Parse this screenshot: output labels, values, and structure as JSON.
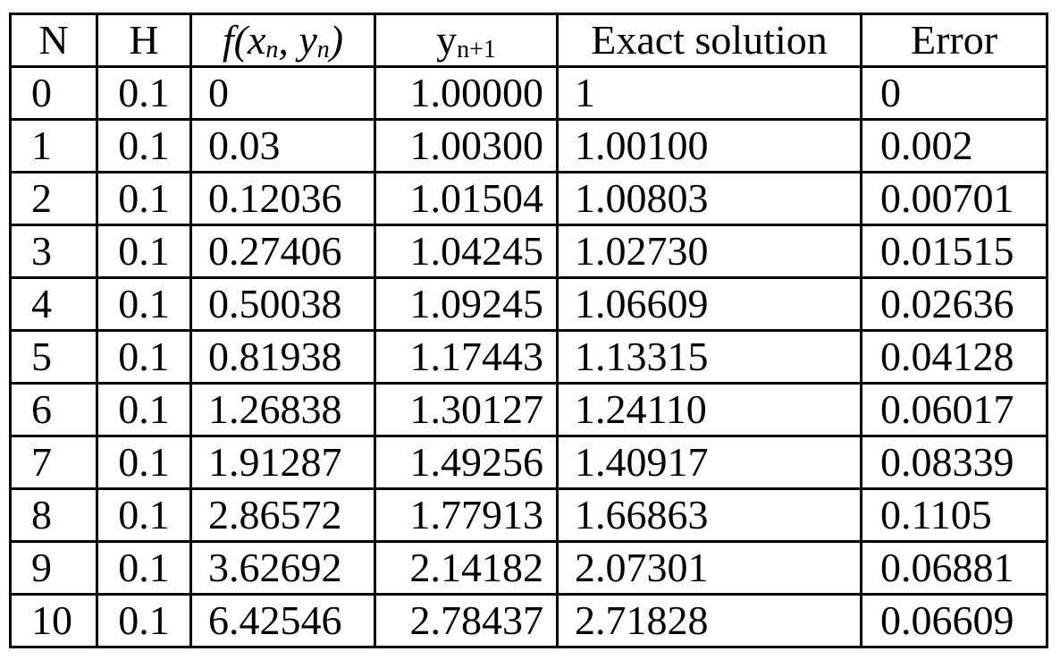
{
  "table": {
    "headers": {
      "n": "N",
      "h": "H",
      "f_main": "f(x",
      "f_sub1": "n",
      "f_mid": ", y",
      "f_sub2": "n",
      "f_end": ")",
      "y_main": "y",
      "y_sub": "n+1",
      "exact": "Exact solution",
      "error": "Error"
    },
    "rows": [
      [
        "0",
        "0.1",
        "0",
        "1.00000",
        "1",
        "0"
      ],
      [
        "1",
        "0.1",
        "0.03",
        "1.00300",
        "1.00100",
        "0.002"
      ],
      [
        "2",
        "0.1",
        "0.12036",
        "1.01504",
        "1.00803",
        "0.00701"
      ],
      [
        "3",
        "0.1",
        "0.27406",
        "1.04245",
        "1.02730",
        "0.01515"
      ],
      [
        "4",
        "0.1",
        "0.50038",
        "1.09245",
        "1.06609",
        "0.02636"
      ],
      [
        "5",
        "0.1",
        "0.81938",
        "1.17443",
        "1.13315",
        "0.04128"
      ],
      [
        "6",
        "0.1",
        "1.26838",
        "1.30127",
        "1.24110",
        "0.06017"
      ],
      [
        "7",
        "0.1",
        "1.91287",
        "1.49256",
        "1.40917",
        "0.08339"
      ],
      [
        "8",
        "0.1",
        "2.86572",
        "1.77913",
        "1.66863",
        "0.1105"
      ],
      [
        "9",
        "0.1",
        "3.62692",
        "2.14182",
        "2.07301",
        "0.06881"
      ],
      [
        "10",
        "0.1",
        "6.42546",
        "2.78437",
        "2.71828",
        "0.06609"
      ]
    ]
  }
}
